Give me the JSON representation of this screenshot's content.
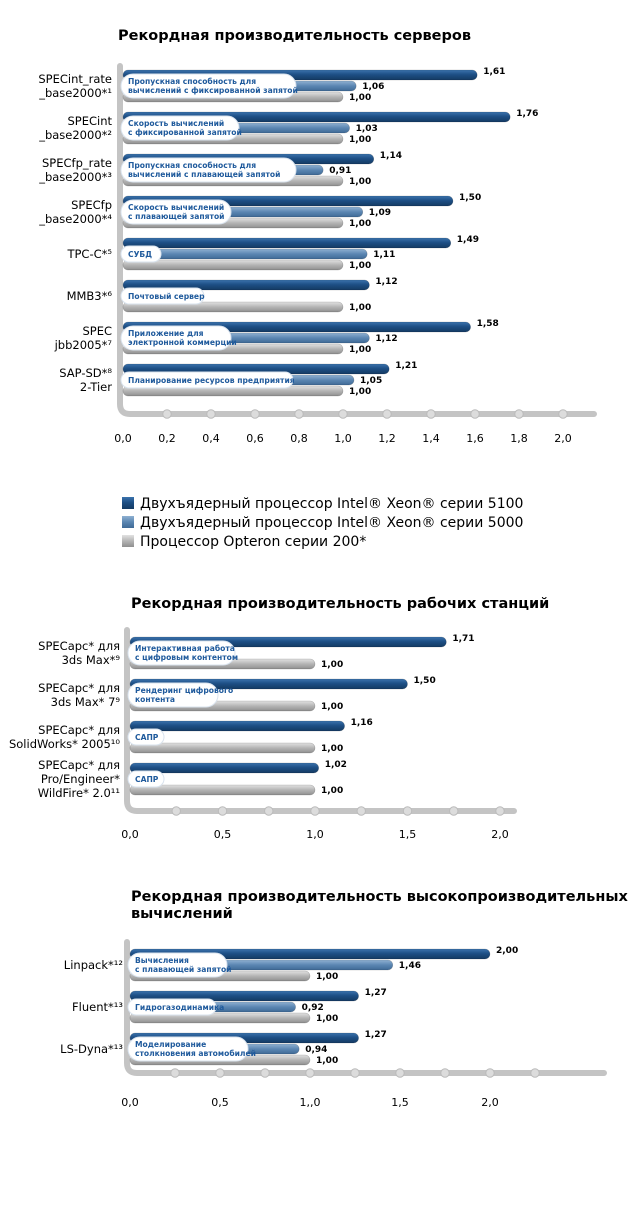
{
  "colors": {
    "xeon5100": "#1e4f85",
    "xeon5000": "#5b86b2",
    "opteron": "#a9a9a9",
    "frame": "#c4c4c4",
    "pill_text": "#1f5a9c"
  },
  "legend": [
    {
      "label": "Двухъядерный процессор Intel® Xeon® серии 5100",
      "series": "xeon5100"
    },
    {
      "label": "Двухъядерный процессор Intel® Xeon® серии 5000",
      "series": "xeon5000"
    },
    {
      "label": "Процессор Opteron серии 200*",
      "series": "opteron"
    }
  ],
  "chart_data": [
    {
      "type": "bar",
      "orientation": "horizontal",
      "title": "Рекордная производительность серверов",
      "xlim": [
        0,
        2.2
      ],
      "tick_labels": [
        "0,0",
        "0,2",
        "0,4",
        "0,6",
        "0,8",
        "1,0",
        "1,2",
        "1,4",
        "1,6",
        "1,8",
        "2,0"
      ],
      "categories": [
        {
          "label": [
            "SPECint_rate",
            "_base2000*¹"
          ],
          "pill": [
            "Пропускная способность для",
            "вычислений с фиксированной запятой"
          ],
          "bars": [
            {
              "series": "xeon5100",
              "value": 1.61,
              "label": "1,61"
            },
            {
              "series": "xeon5000",
              "value": 1.06,
              "label": "1,06"
            },
            {
              "series": "opteron",
              "value": 1.0,
              "label": "1,00"
            }
          ]
        },
        {
          "label": [
            "SPECint",
            "_base2000*²"
          ],
          "pill": [
            "Скорость вычислений",
            "с фиксированной запятой"
          ],
          "bars": [
            {
              "series": "xeon5100",
              "value": 1.76,
              "label": "1,76"
            },
            {
              "series": "xeon5000",
              "value": 1.03,
              "label": "1,03"
            },
            {
              "series": "opteron",
              "value": 1.0,
              "label": "1,00"
            }
          ]
        },
        {
          "label": [
            "SPECfp_rate",
            "_base2000*³"
          ],
          "pill": [
            "Пропускная способность для",
            "вычислений с плавающей запятой"
          ],
          "bars": [
            {
              "series": "xeon5100",
              "value": 1.14,
              "label": "1,14"
            },
            {
              "series": "xeon5000",
              "value": 0.91,
              "label": "0,91"
            },
            {
              "series": "opteron",
              "value": 1.0,
              "label": "1,00"
            }
          ]
        },
        {
          "label": [
            "SPECfp",
            "_base2000*⁴"
          ],
          "pill": [
            "Скорость вычислений",
            "с плавающей запятой"
          ],
          "bars": [
            {
              "series": "xeon5100",
              "value": 1.5,
              "label": "1,50"
            },
            {
              "series": "xeon5000",
              "value": 1.09,
              "label": "1,09"
            },
            {
              "series": "opteron",
              "value": 1.0,
              "label": "1,00"
            }
          ]
        },
        {
          "label": [
            "TPC-C*⁵"
          ],
          "pill": [
            "СУБД"
          ],
          "bars": [
            {
              "series": "xeon5100",
              "value": 1.49,
              "label": "1,49"
            },
            {
              "series": "xeon5000",
              "value": 1.11,
              "label": "1,11"
            },
            {
              "series": "opteron",
              "value": 1.0,
              "label": "1,00"
            }
          ]
        },
        {
          "label": [
            "MMB3*⁶"
          ],
          "pill": [
            "Почтовый сервер"
          ],
          "bars": [
            {
              "series": "xeon5100",
              "value": 1.12,
              "label": "1,12"
            },
            {
              "series": "opteron",
              "value": 1.0,
              "label": "1,00"
            }
          ]
        },
        {
          "label": [
            "SPEC",
            "jbb2005*⁷"
          ],
          "pill": [
            "Приложение для",
            "электронной коммерции"
          ],
          "bars": [
            {
              "series": "xeon5100",
              "value": 1.58,
              "label": "1,58"
            },
            {
              "series": "xeon5000",
              "value": 1.12,
              "label": "1,12"
            },
            {
              "series": "opteron",
              "value": 1.0,
              "label": "1,00"
            }
          ]
        },
        {
          "label": [
            "SAP-SD*⁸",
            "2-Tier"
          ],
          "pill": [
            "Планирование ресурсов предприятия"
          ],
          "bars": [
            {
              "series": "xeon5100",
              "value": 1.21,
              "label": "1,21"
            },
            {
              "series": "xeon5000",
              "value": 1.05,
              "label": "1,05"
            },
            {
              "series": "opteron",
              "value": 1.0,
              "label": "1,00"
            }
          ]
        }
      ]
    },
    {
      "type": "bar",
      "orientation": "horizontal",
      "title": "Рекордная производительность рабочих станций",
      "xlim": [
        0,
        2.2
      ],
      "tick_labels": [
        "0,0",
        "0,5",
        "1,0",
        "1,5",
        "2,0"
      ],
      "categories": [
        {
          "label": [
            "SPECapc* для",
            "3ds Max*⁹"
          ],
          "pill": [
            "Интерактивная работа",
            "с цифровым контентом"
          ],
          "bars": [
            {
              "series": "xeon5100",
              "value": 1.71,
              "label": "1,71"
            },
            {
              "series": "opteron",
              "value": 1.0,
              "label": "1,00"
            }
          ]
        },
        {
          "label": [
            "SPECapc* для",
            "3ds Max* 7⁹"
          ],
          "pill": [
            "Рендеринг цифрового",
            "контента"
          ],
          "bars": [
            {
              "series": "xeon5100",
              "value": 1.5,
              "label": "1,50"
            },
            {
              "series": "opteron",
              "value": 1.0,
              "label": "1,00"
            }
          ]
        },
        {
          "label": [
            "SPECapc* для",
            "SolidWorks* 2005¹⁰"
          ],
          "pill": [
            "САПР"
          ],
          "bars": [
            {
              "series": "xeon5100",
              "value": 1.16,
              "label": "1,16"
            },
            {
              "series": "opteron",
              "value": 1.0,
              "label": "1,00"
            }
          ]
        },
        {
          "label": [
            "SPECapc* для",
            "Pro/Engineer*",
            "WildFire* 2.0¹¹"
          ],
          "pill": [
            "САПР"
          ],
          "bars": [
            {
              "series": "xeon5100",
              "value": 1.02,
              "label": "1,02"
            },
            {
              "series": "opteron",
              "value": 1.0,
              "label": "1,00"
            }
          ]
        }
      ]
    },
    {
      "type": "bar",
      "orientation": "horizontal",
      "title": "Рекордная производительность высокопроизводительных вычислений",
      "xlim": [
        0,
        2.6
      ],
      "tick_labels": [
        "0,0",
        "0,5",
        "1,,0",
        "1,5",
        "2,0"
      ],
      "categories": [
        {
          "label": [
            "Linpack*¹²"
          ],
          "pill": [
            "Вычисления",
            "с плавающей запятой"
          ],
          "bars": [
            {
              "series": "xeon5100",
              "value": 2.0,
              "label": "2,00"
            },
            {
              "series": "xeon5000",
              "value": 1.46,
              "label": "1,46"
            },
            {
              "series": "opteron",
              "value": 1.0,
              "label": "1,00"
            }
          ]
        },
        {
          "label": [
            "Fluent*¹³"
          ],
          "pill": [
            "Гидрогазодинамика"
          ],
          "bars": [
            {
              "series": "xeon5100",
              "value": 1.27,
              "label": "1,27"
            },
            {
              "series": "xeon5000",
              "value": 0.92,
              "label": "0,92"
            },
            {
              "series": "opteron",
              "value": 1.0,
              "label": "1,00"
            }
          ]
        },
        {
          "label": [
            "LS-Dyna*¹³"
          ],
          "pill": [
            "Моделирование",
            "столкновения автомобилей"
          ],
          "bars": [
            {
              "series": "xeon5100",
              "value": 1.27,
              "label": "1,27"
            },
            {
              "series": "xeon5000",
              "value": 0.94,
              "label": "0,94"
            },
            {
              "series": "opteron",
              "value": 1.0,
              "label": "1,00"
            }
          ]
        }
      ]
    }
  ]
}
